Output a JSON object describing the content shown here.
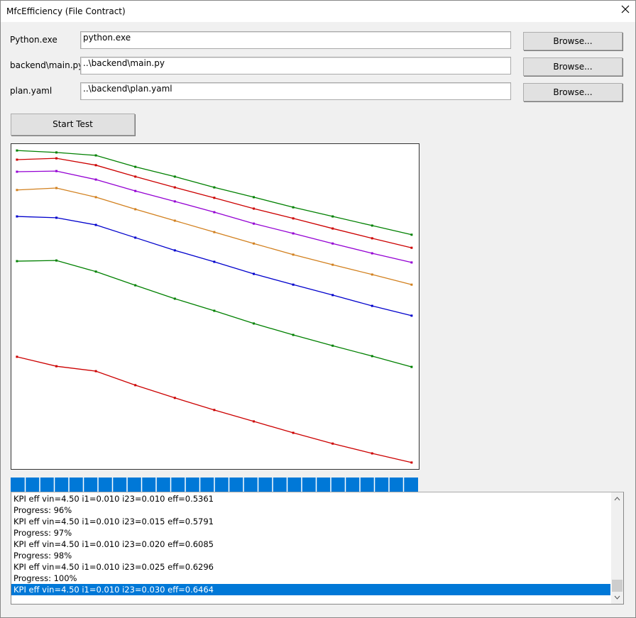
{
  "window": {
    "title": "MfcEfficiency (File Contract)"
  },
  "form": {
    "rows": [
      {
        "label": "Python.exe",
        "value": "python.exe",
        "button": "Browse..."
      },
      {
        "label": "backend\\main.py",
        "value": "..\\backend\\main.py",
        "button": "Browse..."
      },
      {
        "label": "plan.yaml",
        "value": "..\\backend\\plan.yaml",
        "button": "Browse..."
      }
    ],
    "start_button": "Start Test"
  },
  "chart_data": {
    "type": "line",
    "x": [
      0,
      1,
      2,
      3,
      4,
      5,
      6,
      7,
      8,
      9,
      10
    ],
    "xlim": [
      -0.16,
      10.2
    ],
    "ylim": [
      0,
      100
    ],
    "series": [
      {
        "color": "#008000",
        "values": [
          97.8,
          97.2,
          96.3,
          92.8,
          89.8,
          86.5,
          83.5,
          80.4,
          77.6,
          74.8,
          72.0
        ]
      },
      {
        "color": "#cc0000",
        "values": [
          95.0,
          95.4,
          93.3,
          89.8,
          86.5,
          83.3,
          80.0,
          77.0,
          73.9,
          70.9,
          68.0
        ]
      },
      {
        "color": "#9400d3",
        "values": [
          91.3,
          91.5,
          88.9,
          85.4,
          82.2,
          78.9,
          75.4,
          72.4,
          69.3,
          66.3,
          63.5
        ]
      },
      {
        "color": "#d2801e",
        "values": [
          85.7,
          86.3,
          83.5,
          79.8,
          76.3,
          72.8,
          69.3,
          65.9,
          62.8,
          59.8,
          56.7
        ]
      },
      {
        "color": "#0000cc",
        "values": [
          77.6,
          77.2,
          75.0,
          71.1,
          67.2,
          63.7,
          60.0,
          56.7,
          53.5,
          50.2,
          47.2
        ]
      },
      {
        "color": "#008000",
        "values": [
          63.9,
          64.1,
          60.7,
          56.5,
          52.4,
          48.7,
          44.8,
          41.3,
          38.0,
          34.8,
          31.5
        ]
      },
      {
        "color": "#cc0000",
        "values": [
          34.6,
          31.7,
          30.2,
          25.9,
          22.0,
          18.3,
          14.8,
          11.3,
          8.0,
          5.0,
          2.2
        ]
      }
    ]
  },
  "progress": {
    "value": 100
  },
  "log": {
    "lines": [
      "KPI eff vin=4.50 i1=0.010 i23=0.010 eff=0.5361",
      "Progress: 96%",
      "KPI eff vin=4.50 i1=0.010 i23=0.015 eff=0.5791",
      "Progress: 97%",
      "KPI eff vin=4.50 i1=0.010 i23=0.020 eff=0.6085",
      "Progress: 98%",
      "KPI eff vin=4.50 i1=0.010 i23=0.025 eff=0.6296",
      "Progress: 100%",
      "KPI eff vin=4.50 i1=0.010 i23=0.030 eff=0.6464"
    ],
    "selected": 8
  }
}
